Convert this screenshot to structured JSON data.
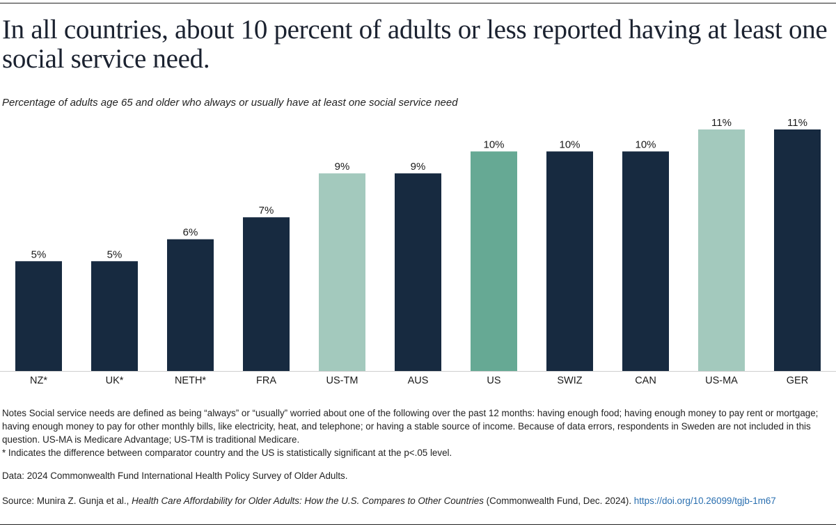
{
  "title": "In all countries, about 10 percent of adults or less reported having at least one social service need.",
  "subtitle": "Percentage of adults age 65 and older who always or usually have at least one social service need",
  "colors": {
    "dark": "#172a40",
    "light": "#a3c9bd",
    "accent": "#66a994"
  },
  "chart_data": {
    "type": "bar",
    "title": "",
    "xlabel": "",
    "ylabel": "",
    "ylim": [
      0,
      11
    ],
    "categories": [
      "NZ*",
      "UK*",
      "NETH*",
      "FRA",
      "US-TM",
      "AUS",
      "US",
      "SWIZ",
      "CAN",
      "US-MA",
      "GER"
    ],
    "values": [
      5,
      5,
      6,
      7,
      9,
      9,
      10,
      10,
      10,
      11,
      11
    ],
    "data_labels": [
      "5%",
      "5%",
      "6%",
      "7%",
      "9%",
      "9%",
      "10%",
      "10%",
      "10%",
      "11%",
      "11%"
    ],
    "bar_colors": [
      "dark",
      "dark",
      "dark",
      "dark",
      "light",
      "dark",
      "accent",
      "dark",
      "dark",
      "light",
      "dark"
    ],
    "grid": false,
    "legend": "none"
  },
  "notes": {
    "line1": "Notes Social service needs are defined as being “always” or “usually” worried about one of the following over the past 12 months: having enough food; having enough money to pay rent or mortgage; having enough money to pay for other monthly bills, like electricity, heat, and telephone; or having a stable source of income. Because of data errors, respondents in Sweden are not included in this question. US-MA is Medicare Advantage; US-TM is traditional Medicare.",
    "line2": "* Indicates the difference between comparator country and the US is statistically significant at the p<.05 level."
  },
  "data_source": "Data: 2024 Commonwealth Fund International Health Policy Survey of Older Adults.",
  "source": {
    "prefix": "Source: Munira Z. Gunja et al., ",
    "publication": "Health Care Affordability for Older Adults: How the U.S. Compares to Other Countries",
    "suffix": " (Commonwealth Fund, Dec. 2024). ",
    "link": "https://doi.org/10.26099/tgjb-1m67"
  }
}
